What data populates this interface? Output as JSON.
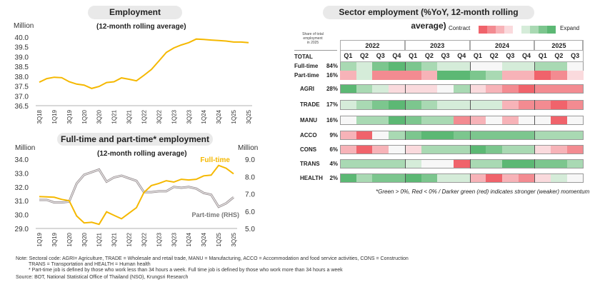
{
  "left_top": {
    "title": "Employment",
    "subtitle": "(12-month rolling average)",
    "unit": "Million"
  },
  "left_bottom": {
    "title": "Full-time and part-time* employment",
    "subtitle": "(12-month rolling average)",
    "unit_left": "Million",
    "unit_right": "Million"
  },
  "right": {
    "title": "Sector employment (%YoY, 12-month rolling average)",
    "share_header": [
      "Share of total",
      "employment",
      "in 2025"
    ],
    "legend_contract": "Contract",
    "legend_expand": "Expand",
    "footnote": "*Green > 0%, Red < 0% / Darker green (red) indicates stronger (weaker) momentum"
  },
  "notes": {
    "line1": "Note: Sectoral code: AGRI= Agriculture, TRADE = Wholesale and retail trade, MANU = Manufacturing, ACCO = Accommodation and food service activities, CONS = Construction",
    "line2": "TRANS = Transportation and HEALTH = Human health",
    "line3": "* Part-time job is defined by those who work less than 34 hours a week. Full time job is defined by those who work  more than 34 hours a week",
    "source": "Source: BOT, National Statistical Office of Thailand (NSO), Krungsri Research"
  },
  "colors": {
    "line_primary": "#f5b800",
    "line_secondary": "#b0a8aa",
    "green": [
      "#f7f7f7",
      "#d5ecd9",
      "#a9d9b3",
      "#7cc68e",
      "#5cb874"
    ],
    "red": [
      "#f7f7f7",
      "#fadadd",
      "#f7b3b8",
      "#f38b91",
      "#f0636b"
    ]
  },
  "chart_data": [
    {
      "type": "line",
      "title": "Employment",
      "subtitle": "(12-month rolling average)",
      "ylabel": "Million",
      "ylim": [
        36.5,
        40.0
      ],
      "yticks": [
        "36.5",
        "37.0",
        "37.5",
        "38.0",
        "38.5",
        "39.0",
        "39.5",
        "40.0"
      ],
      "x": [
        "3Q18",
        "4Q18",
        "1Q19",
        "2Q19",
        "3Q19",
        "4Q19",
        "1Q20",
        "2Q20",
        "3Q20",
        "4Q20",
        "1Q21",
        "2Q21",
        "3Q21",
        "4Q21",
        "1Q22",
        "2Q22",
        "3Q22",
        "4Q22",
        "1Q23",
        "2Q23",
        "3Q23",
        "4Q23",
        "1Q24",
        "2Q24",
        "3Q24",
        "4Q24",
        "1Q25",
        "2Q25",
        "3Q25"
      ],
      "xtick_labels": [
        "3Q18",
        "1Q19",
        "3Q19",
        "1Q20",
        "3Q20",
        "1Q21",
        "3Q21",
        "1Q22",
        "3Q22",
        "1Q23",
        "3Q23",
        "1Q24",
        "3Q24",
        "1Q25",
        "3Q25"
      ],
      "values": [
        37.7,
        37.88,
        37.95,
        37.93,
        37.72,
        37.6,
        37.55,
        37.38,
        37.48,
        37.68,
        37.72,
        37.92,
        37.85,
        37.77,
        38.05,
        38.35,
        38.78,
        39.22,
        39.45,
        39.6,
        39.72,
        39.9,
        39.88,
        39.85,
        39.83,
        39.8,
        39.75,
        39.75,
        39.72
      ],
      "grid": false
    },
    {
      "type": "line",
      "title": "Full-time and part-time* employment",
      "subtitle": "(12-month rolling average)",
      "ylabel": "Million",
      "y2label": "Million",
      "ylim": [
        29.0,
        34.0
      ],
      "y2lim": [
        5.0,
        9.0
      ],
      "yticks": [
        "29.0",
        "30.0",
        "31.0",
        "32.0",
        "33.0",
        "34.0"
      ],
      "y2ticks": [
        "5.0",
        "6.0",
        "7.0",
        "8.0",
        "9.0"
      ],
      "x": [
        "1Q19",
        "2Q19",
        "3Q19",
        "4Q19",
        "1Q20",
        "2Q20",
        "3Q20",
        "4Q20",
        "1Q21",
        "2Q21",
        "3Q21",
        "4Q21",
        "1Q22",
        "2Q22",
        "3Q22",
        "4Q22",
        "1Q23",
        "2Q23",
        "3Q23",
        "4Q23",
        "1Q24",
        "2Q24",
        "3Q24",
        "4Q24",
        "1Q25",
        "2Q25",
        "3Q25"
      ],
      "xtick_labels": [
        "1Q19",
        "3Q19",
        "1Q20",
        "3Q20",
        "1Q21",
        "3Q21",
        "1Q22",
        "3Q22",
        "1Q23",
        "3Q23",
        "1Q24",
        "3Q24",
        "1Q25",
        "3Q25"
      ],
      "series": [
        {
          "name": "Full-time",
          "axis": "left",
          "values": [
            31.3,
            31.28,
            31.25,
            31.1,
            31.0,
            29.9,
            29.4,
            29.45,
            29.3,
            30.2,
            29.95,
            29.7,
            30.1,
            30.5,
            31.6,
            32.1,
            32.25,
            32.45,
            32.35,
            32.55,
            32.5,
            32.55,
            32.8,
            32.85,
            33.55,
            33.35,
            32.95
          ]
        },
        {
          "name": "Part-time (RHS)",
          "axis": "right",
          "values": [
            6.65,
            6.65,
            6.5,
            6.5,
            6.55,
            7.6,
            8.1,
            8.25,
            8.4,
            7.7,
            7.95,
            8.05,
            7.9,
            7.75,
            7.1,
            7.1,
            7.15,
            7.15,
            7.4,
            7.35,
            7.4,
            7.3,
            7.05,
            6.95,
            6.25,
            6.45,
            6.8
          ]
        }
      ],
      "grid": false
    },
    {
      "type": "heatmap",
      "years": [
        "2022",
        "2023",
        "2024",
        "2025"
      ],
      "quarters": [
        "Q1",
        "Q2",
        "Q3",
        "Q4",
        "Q1",
        "Q2",
        "Q3",
        "Q4",
        "Q1",
        "Q2",
        "Q3",
        "Q4",
        "Q1",
        "Q2",
        "Q3"
      ],
      "scale": "momentum level -4 (strong contraction) to +4 (strong expansion)",
      "total_label": "TOTAL",
      "rows": [
        {
          "label": "Full-time",
          "share": "84%",
          "group": "total",
          "levels": [
            2,
            1,
            3,
            4,
            3,
            2,
            1,
            1,
            0,
            0,
            1,
            1,
            2,
            2,
            0
          ]
        },
        {
          "label": "Part-time",
          "share": "16%",
          "group": "total",
          "levels": [
            -2,
            1,
            -3,
            -3,
            -3,
            -2,
            4,
            4,
            3,
            2,
            -2,
            -2,
            -4,
            -3,
            -1
          ]
        },
        {
          "label": "AGRI",
          "share": "28%",
          "levels": [
            4,
            2,
            1,
            -1,
            -1,
            -1,
            0,
            2,
            -1,
            -2,
            -3,
            -4,
            -3,
            -3,
            -3
          ]
        },
        {
          "label": "TRADE",
          "share": "17%",
          "levels": [
            1,
            2,
            3,
            4,
            3,
            2,
            1,
            1,
            1,
            1,
            -2,
            -3,
            -3,
            -4,
            -3
          ]
        },
        {
          "label": "MANU",
          "share": "16%",
          "levels": [
            0,
            2,
            2,
            4,
            3,
            2,
            2,
            -3,
            -2,
            0,
            -2,
            0,
            0,
            -4,
            0
          ]
        },
        {
          "label": "ACCO",
          "share": "9%",
          "levels": [
            -2,
            -4,
            0,
            2,
            3,
            4,
            4,
            3,
            3,
            3,
            3,
            3,
            2,
            2,
            2
          ]
        },
        {
          "label": "CONS",
          "share": "6%",
          "levels": [
            -2,
            -4,
            -2,
            0,
            -1,
            2,
            2,
            2,
            4,
            3,
            2,
            2,
            -1,
            -2,
            -3
          ]
        },
        {
          "label": "TRANS",
          "share": "4%",
          "levels": [
            2,
            2,
            2,
            2,
            1,
            0,
            0,
            -4,
            2,
            2,
            4,
            4,
            3,
            3,
            2
          ]
        },
        {
          "label": "HEALTH",
          "share": "2%",
          "levels": [
            4,
            2,
            3,
            3,
            4,
            3,
            1,
            1,
            -2,
            -4,
            -2,
            -3,
            -1,
            1,
            0
          ]
        }
      ]
    }
  ]
}
